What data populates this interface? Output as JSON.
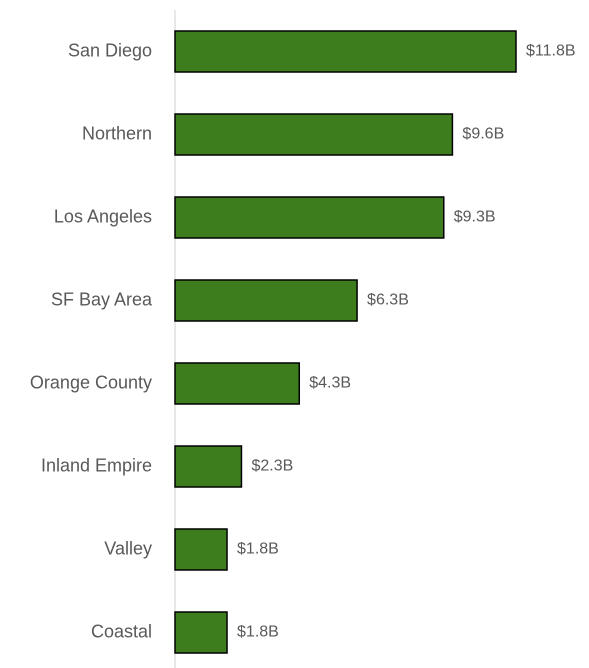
{
  "chart_data": {
    "type": "bar",
    "orientation": "horizontal",
    "categories": [
      "San Diego",
      "Northern",
      "Los Angeles",
      "SF Bay Area",
      "Orange County",
      "Inland Empire",
      "Valley",
      "Coastal"
    ],
    "values": [
      11.8,
      9.6,
      9.3,
      6.3,
      4.3,
      2.3,
      1.8,
      1.8
    ],
    "value_labels": [
      "$11.8B",
      "$9.6B",
      "$9.3B",
      "$6.3B",
      "$4.3B",
      "$2.3B",
      "$1.8B",
      "$1.8B"
    ],
    "color": "#3e7d1e"
  }
}
